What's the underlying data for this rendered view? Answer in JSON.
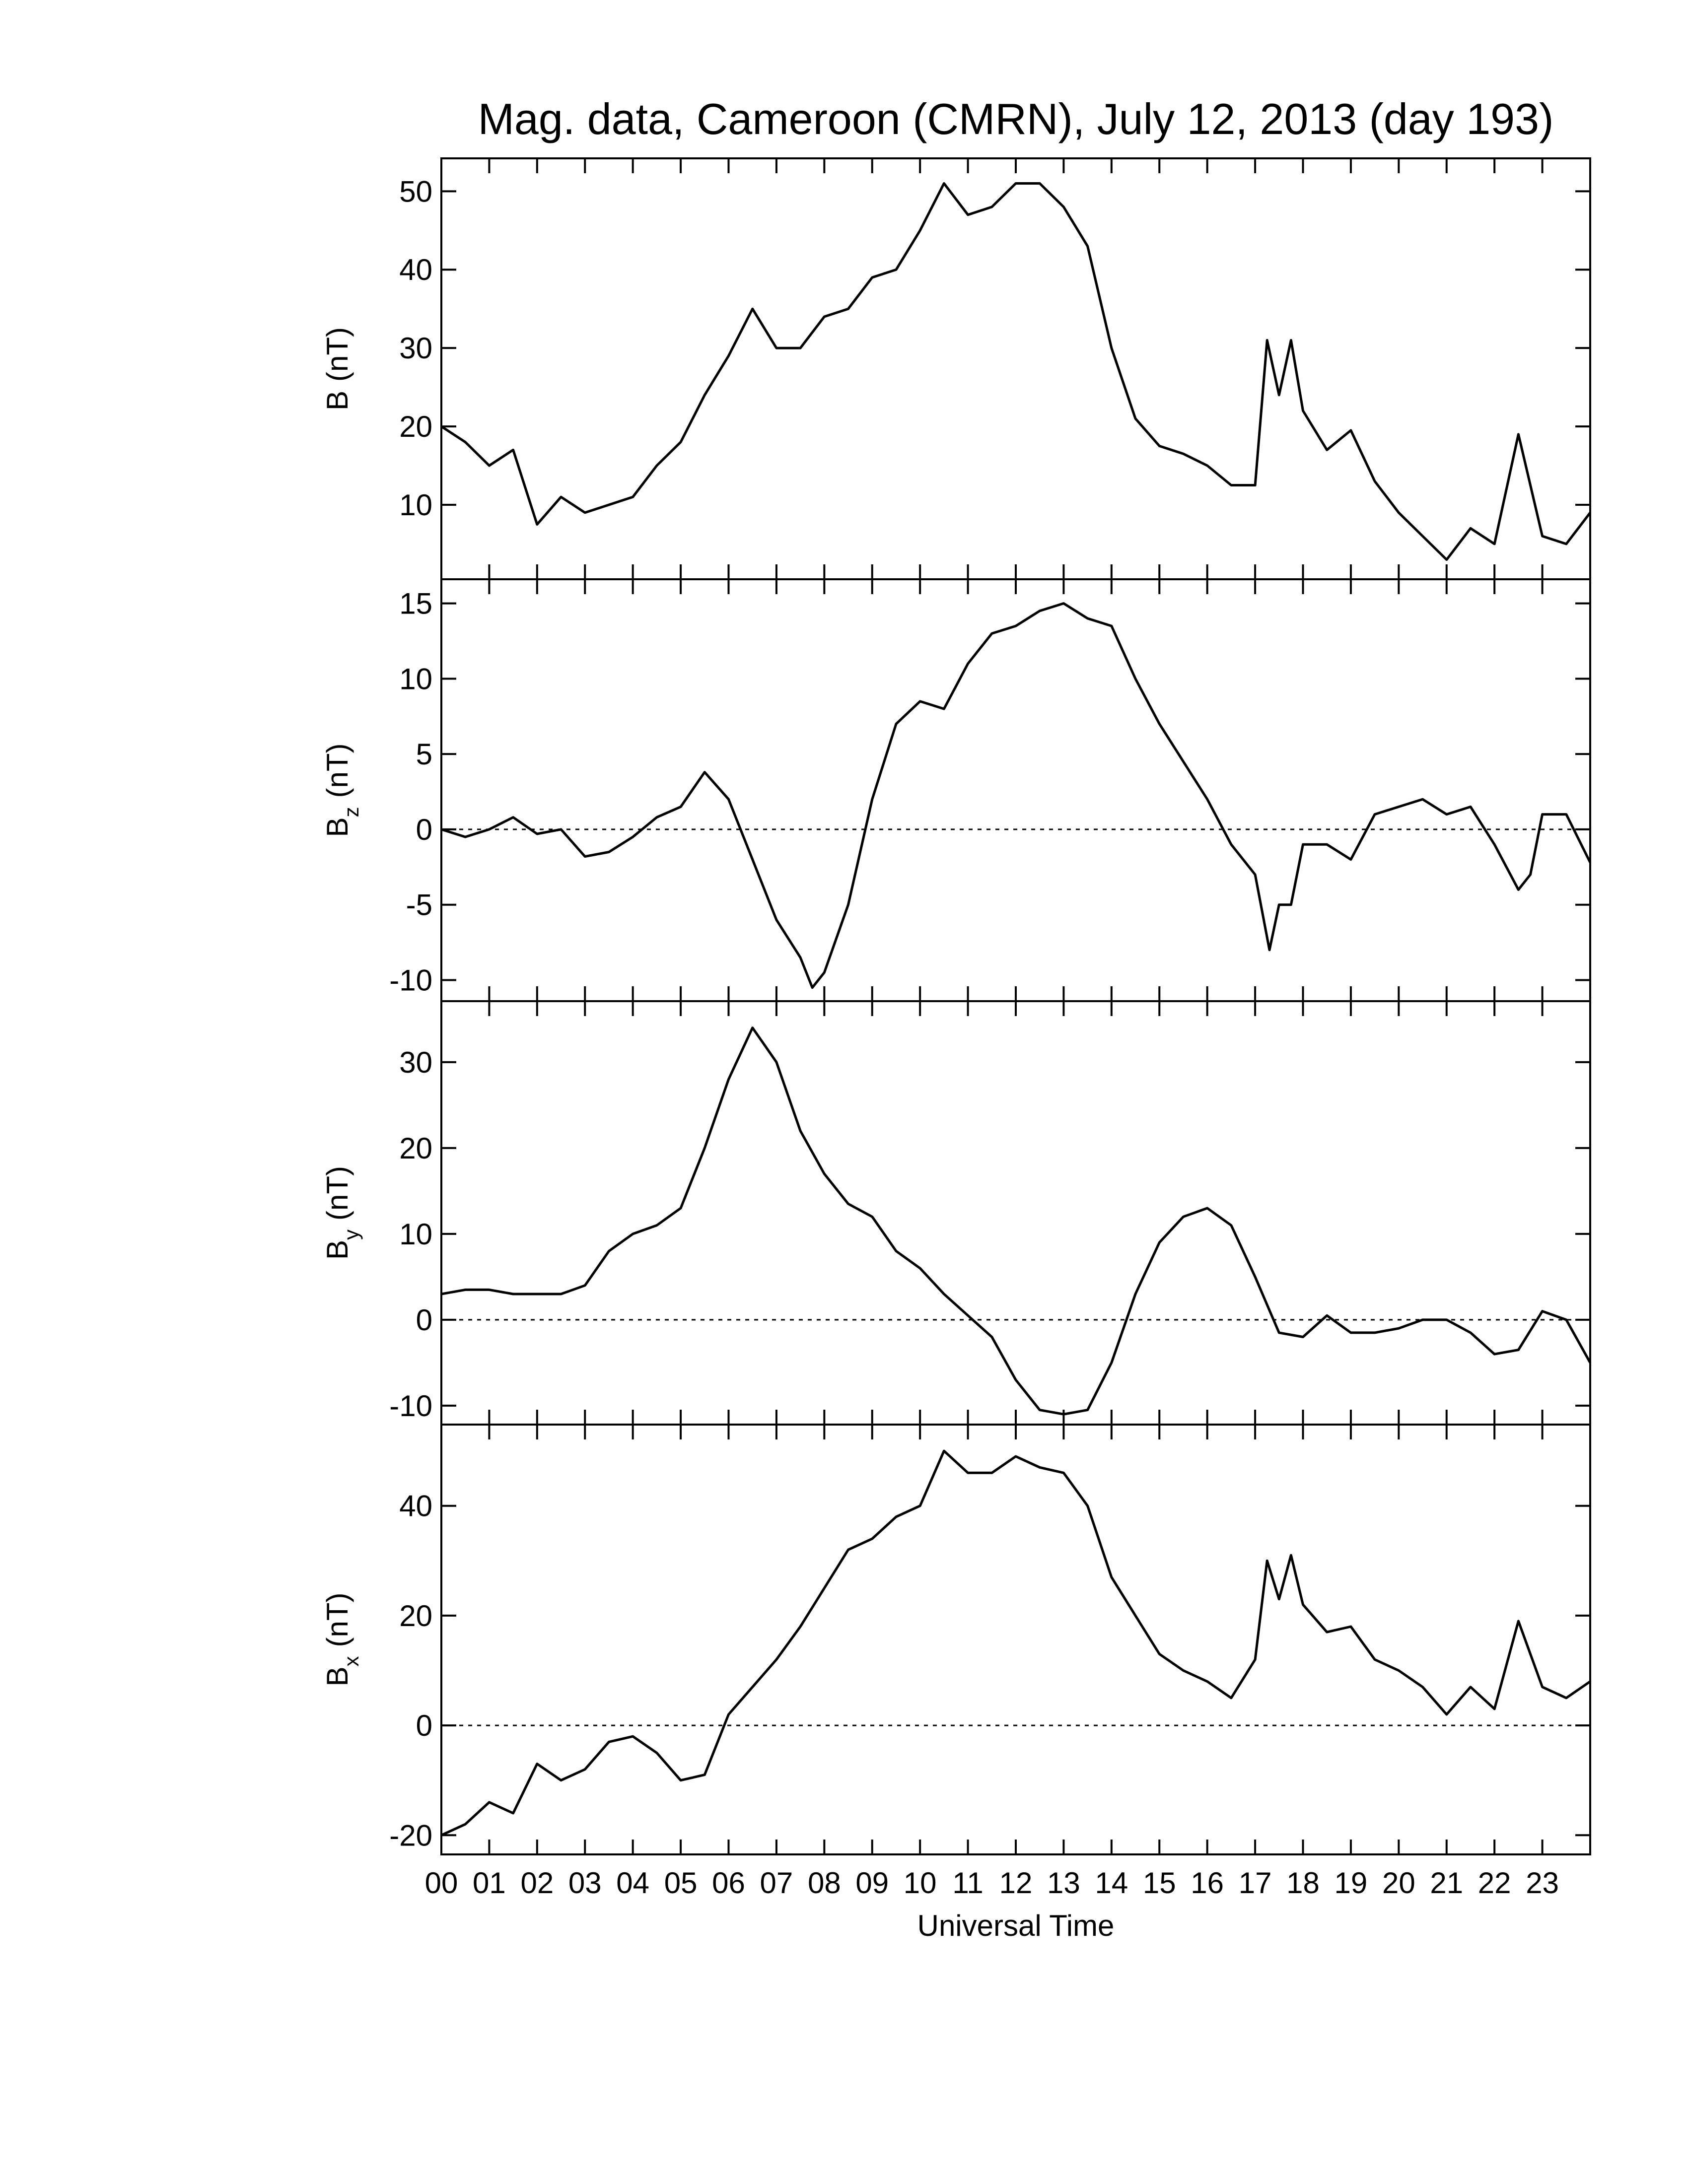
{
  "chart_data": [
    {
      "type": "line",
      "title": "Mag. data, Cameroon (CMRN), July 12, 2013 (day 193)",
      "ylabel_main": "B",
      "ylabel_unit": "(nT)",
      "color": "#000000",
      "xlim": [
        0,
        24
      ],
      "ylim": [
        0.5,
        54.2
      ],
      "yticks": [
        10,
        20,
        30,
        40,
        50
      ],
      "x": [
        0,
        0.5,
        1,
        1.5,
        2,
        2.5,
        3,
        3.5,
        4,
        4.5,
        5,
        5.5,
        6,
        6.5,
        7,
        7.5,
        8,
        8.5,
        9,
        9.5,
        10,
        10.5,
        11,
        11.5,
        12,
        12.5,
        13,
        13.5,
        14,
        14.5,
        15,
        15.5,
        16,
        16.5,
        17,
        17.25,
        17.5,
        17.75,
        18,
        18.5,
        19,
        19.5,
        20,
        20.5,
        21,
        21.5,
        22,
        22.5,
        23,
        23.5,
        24
      ],
      "values": [
        20,
        18,
        15,
        17,
        7.5,
        11,
        9,
        10,
        11,
        15,
        18,
        24,
        29,
        35,
        30,
        30,
        34,
        35,
        39,
        40,
        45,
        51,
        47,
        48,
        51,
        51,
        48,
        43,
        30,
        21,
        17.5,
        16.5,
        15,
        12.5,
        12.5,
        31,
        24,
        31,
        22,
        17,
        19.5,
        13,
        9,
        6,
        3,
        7,
        5,
        19,
        6,
        5,
        9
      ]
    },
    {
      "type": "line",
      "ylabel_main": "B",
      "ylabel_sub": "z",
      "ylabel_unit": "(nT)",
      "color": "#000000",
      "hline": 0,
      "xlim": [
        0,
        24
      ],
      "ylim": [
        -11.4,
        16.6
      ],
      "yticks": [
        -10,
        -5,
        0,
        5,
        10,
        15
      ],
      "x": [
        0,
        0.5,
        1,
        1.5,
        2,
        2.5,
        3,
        3.5,
        4,
        4.5,
        5,
        5.5,
        6,
        6.5,
        7,
        7.5,
        7.75,
        8,
        8.5,
        9,
        9.5,
        10,
        10.5,
        11,
        11.5,
        12,
        12.5,
        13,
        13.5,
        14,
        14.5,
        15,
        15.5,
        16,
        16.5,
        17,
        17.3,
        17.5,
        17.75,
        18,
        18.5,
        19,
        19.5,
        20,
        20.5,
        21,
        21.5,
        22,
        22.5,
        22.75,
        23,
        23.5,
        24
      ],
      "values": [
        0,
        -0.5,
        0,
        0.8,
        -0.3,
        0,
        -1.8,
        -1.5,
        -0.5,
        0.8,
        1.5,
        3.8,
        2,
        -2,
        -6,
        -8.5,
        -10.5,
        -9.5,
        -5,
        2,
        7,
        8.5,
        8,
        11,
        13,
        13.5,
        14.5,
        15,
        14,
        13.5,
        10,
        7,
        4.5,
        2,
        -1,
        -3,
        -8,
        -5,
        -5,
        -1,
        -1,
        -2,
        1,
        1.5,
        2,
        1,
        1.5,
        -1,
        -4,
        -3,
        1,
        1,
        -2.2
      ]
    },
    {
      "type": "line",
      "ylabel_main": "B",
      "ylabel_sub": "y",
      "ylabel_unit": "(nT)",
      "color": "#000000",
      "hline": 0,
      "xlim": [
        0,
        24
      ],
      "ylim": [
        -12.2,
        37.1
      ],
      "yticks": [
        -10,
        0,
        10,
        20,
        30
      ],
      "x": [
        0,
        0.5,
        1,
        1.5,
        2,
        2.5,
        3,
        3.5,
        4,
        4.5,
        5,
        5.5,
        6,
        6.5,
        7,
        7.5,
        8,
        8.5,
        9,
        9.5,
        10,
        10.5,
        11,
        11.5,
        12,
        12.5,
        13,
        13.5,
        14,
        14.5,
        15,
        15.5,
        16,
        16.5,
        17,
        17.5,
        18,
        18.5,
        19,
        19.5,
        20,
        20.5,
        21,
        21.5,
        22,
        22.5,
        23,
        23.5,
        24
      ],
      "values": [
        3,
        3.5,
        3.5,
        3,
        3,
        3,
        4,
        8,
        10,
        11,
        13,
        20,
        28,
        34,
        30,
        22,
        17,
        13.5,
        12,
        8,
        6,
        3,
        0.5,
        -2,
        -7,
        -10.5,
        -11,
        -10.5,
        -5,
        3,
        9,
        12,
        13,
        11,
        5,
        -1.5,
        -2,
        0.5,
        -1.5,
        -1.5,
        -1,
        0,
        0,
        -1.5,
        -4,
        -3.5,
        1,
        0,
        -5
      ]
    },
    {
      "type": "line",
      "ylabel_main": "B",
      "ylabel_sub": "x",
      "ylabel_unit": "(nT)",
      "color": "#000000",
      "hline": 0,
      "xlabel": "Universal Time",
      "xlim": [
        0,
        24
      ],
      "ylim": [
        -23.5,
        54.8
      ],
      "yticks": [
        -20,
        0,
        20,
        40
      ],
      "xticks": [
        {
          "value": 0,
          "label": "00"
        },
        {
          "value": 1,
          "label": "01"
        },
        {
          "value": 2,
          "label": "02"
        },
        {
          "value": 3,
          "label": "03"
        },
        {
          "value": 4,
          "label": "04"
        },
        {
          "value": 5,
          "label": "05"
        },
        {
          "value": 6,
          "label": "06"
        },
        {
          "value": 7,
          "label": "07"
        },
        {
          "value": 8,
          "label": "08"
        },
        {
          "value": 9,
          "label": "09"
        },
        10,
        11,
        12,
        13,
        14,
        15,
        16,
        17,
        18,
        19,
        20,
        21,
        22,
        23
      ],
      "x": [
        0,
        0.5,
        1,
        1.5,
        2,
        2.5,
        3,
        3.5,
        4,
        4.5,
        5,
        5.5,
        6,
        6.5,
        7,
        7.5,
        8,
        8.5,
        9,
        9.5,
        10,
        10.5,
        11,
        11.5,
        12,
        12.5,
        13,
        13.5,
        14,
        14.5,
        15,
        15.5,
        16,
        16.5,
        17,
        17.25,
        17.5,
        17.75,
        18,
        18.5,
        19,
        19.5,
        20,
        20.5,
        21,
        21.5,
        22,
        22.5,
        23,
        23.5,
        24
      ],
      "values": [
        -20,
        -18,
        -14,
        -16,
        -7,
        -10,
        -8,
        -3,
        -2,
        -5,
        -10,
        -9,
        2,
        7,
        12,
        18,
        25,
        32,
        34,
        38,
        40,
        50,
        46,
        46,
        49,
        47,
        46,
        40,
        27,
        20,
        13,
        10,
        8,
        5,
        12,
        30,
        23,
        31,
        22,
        17,
        18,
        12,
        10,
        7,
        2,
        7,
        3,
        19,
        7,
        5,
        8
      ]
    }
  ]
}
